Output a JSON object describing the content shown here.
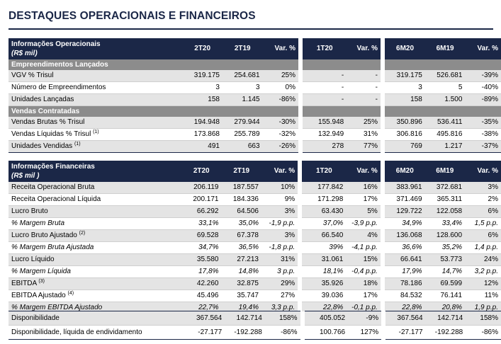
{
  "title": "DESTAQUES OPERACIONAIS E FINANCEIROS",
  "headers": [
    "2T20",
    "2T19",
    "Var. %",
    "1T20",
    "Var. %",
    "6M20",
    "6M19",
    "Var. %"
  ],
  "operational": {
    "title": "Informações Operacionais",
    "unit": "(R$ mil)",
    "sections": [
      {
        "name": "Empreendimentos Lançados",
        "rows": [
          {
            "label": "VGV % Trisul",
            "note": "",
            "values": [
              "319.175",
              "254.681",
              "25%",
              "-",
              "-",
              "319.175",
              "526.681",
              "-39%"
            ]
          },
          {
            "label": "Número de Empreendimentos",
            "note": "",
            "values": [
              "3",
              "3",
              "0%",
              "-",
              "-",
              "3",
              "5",
              "-40%"
            ]
          },
          {
            "label": "Unidades Lançadas",
            "note": "",
            "values": [
              "158",
              "1.145",
              "-86%",
              "-",
              "-",
              "158",
              "1.500",
              "-89%"
            ]
          }
        ]
      },
      {
        "name": "Vendas Contratadas",
        "rows": [
          {
            "label": "Vendas Brutas % Trisul",
            "note": "",
            "values": [
              "194.948",
              "279.944",
              "-30%",
              "155.948",
              "25%",
              "350.896",
              "536.411",
              "-35%"
            ]
          },
          {
            "label": "Vendas Líquidas % Trisul",
            "note": "(1)",
            "values": [
              "173.868",
              "255.789",
              "-32%",
              "132.949",
              "31%",
              "306.816",
              "495.816",
              "-38%"
            ]
          },
          {
            "label": "Unidades Vendidas",
            "note": "(1)",
            "values": [
              "491",
              "663",
              "-26%",
              "278",
              "77%",
              "769",
              "1.217",
              "-37%"
            ]
          }
        ]
      }
    ]
  },
  "financial": {
    "title": "Informações Financeiras",
    "unit": "(R$ mil )",
    "rows": [
      {
        "label": "Receita Operacional Bruta",
        "note": "",
        "italic": false,
        "values": [
          "206.119",
          "187.557",
          "10%",
          "177.842",
          "16%",
          "383.961",
          "372.681",
          "3%"
        ]
      },
      {
        "label": "Receita Operacional Líquida",
        "note": "",
        "italic": false,
        "values": [
          "200.171",
          "184.336",
          "9%",
          "171.298",
          "17%",
          "371.469",
          "365.311",
          "2%"
        ]
      },
      {
        "label": "Lucro Bruto",
        "note": "",
        "italic": false,
        "values": [
          "66.292",
          "64.506",
          "3%",
          "63.430",
          "5%",
          "129.722",
          "122.058",
          "6%"
        ]
      },
      {
        "label": "% Margem Bruta",
        "note": "",
        "italic": true,
        "values": [
          "33,1%",
          "35,0%",
          "-1,9 p.p.",
          "37,0%",
          "-3,9 p.p.",
          "34,9%",
          "33,4%",
          "1,5 p.p."
        ]
      },
      {
        "label": "Lucro Bruto Ajustado",
        "note": "(2)",
        "italic": false,
        "values": [
          "69.528",
          "67.378",
          "3%",
          "66.540",
          "4%",
          "136.068",
          "128.600",
          "6%"
        ]
      },
      {
        "label": "% Margem Bruta Ajustada",
        "note": "",
        "italic": true,
        "values": [
          "34,7%",
          "36,5%",
          "-1,8 p.p.",
          "39%",
          "-4,1 p.p.",
          "36,6%",
          "35,2%",
          "1,4 p.p."
        ]
      },
      {
        "label": "Lucro Líquido",
        "note": "",
        "italic": false,
        "values": [
          "35.580",
          "27.213",
          "31%",
          "31.061",
          "15%",
          "66.641",
          "53.773",
          "24%"
        ]
      },
      {
        "label": "% Margem Líquida",
        "note": "",
        "italic": true,
        "values": [
          "17,8%",
          "14,8%",
          "3 p.p.",
          "18,1%",
          "-0,4 p.p.",
          "17,9%",
          "14,7%",
          "3,2 p.p."
        ]
      },
      {
        "label": "EBITDA",
        "note": "(3)",
        "italic": false,
        "values": [
          "42.260",
          "32.875",
          "29%",
          "35.926",
          "18%",
          "78.186",
          "69.599",
          "12%"
        ]
      },
      {
        "label": "EBITDA Ajustado",
        "note": "(4)",
        "italic": false,
        "values": [
          "45.496",
          "35.747",
          "27%",
          "39.036",
          "17%",
          "84.532",
          "76.141",
          "11%"
        ]
      },
      {
        "label": "% Margem EBITDA Ajustado",
        "note": "",
        "italic": true,
        "values": [
          "22,7%",
          "19,4%",
          "3,3 p.p.",
          "22,8%",
          "-0,1 p.p.",
          "22,8%",
          "20,8%",
          "1,9 p.p."
        ]
      }
    ]
  },
  "cash": {
    "rows": [
      {
        "label": "Disponibilidade",
        "note": "",
        "values": [
          "367.564",
          "142.714",
          "158%",
          "405.052",
          "-9%",
          "367.564",
          "142.714",
          "158%"
        ]
      },
      {
        "label": "Disponibilidade, líquida de endividamento",
        "note": "",
        "values": [
          "-27.177",
          "-192.288",
          "-86%",
          "100.766",
          "127%",
          "-27.177",
          "-192.288",
          "-86%"
        ]
      }
    ]
  }
}
